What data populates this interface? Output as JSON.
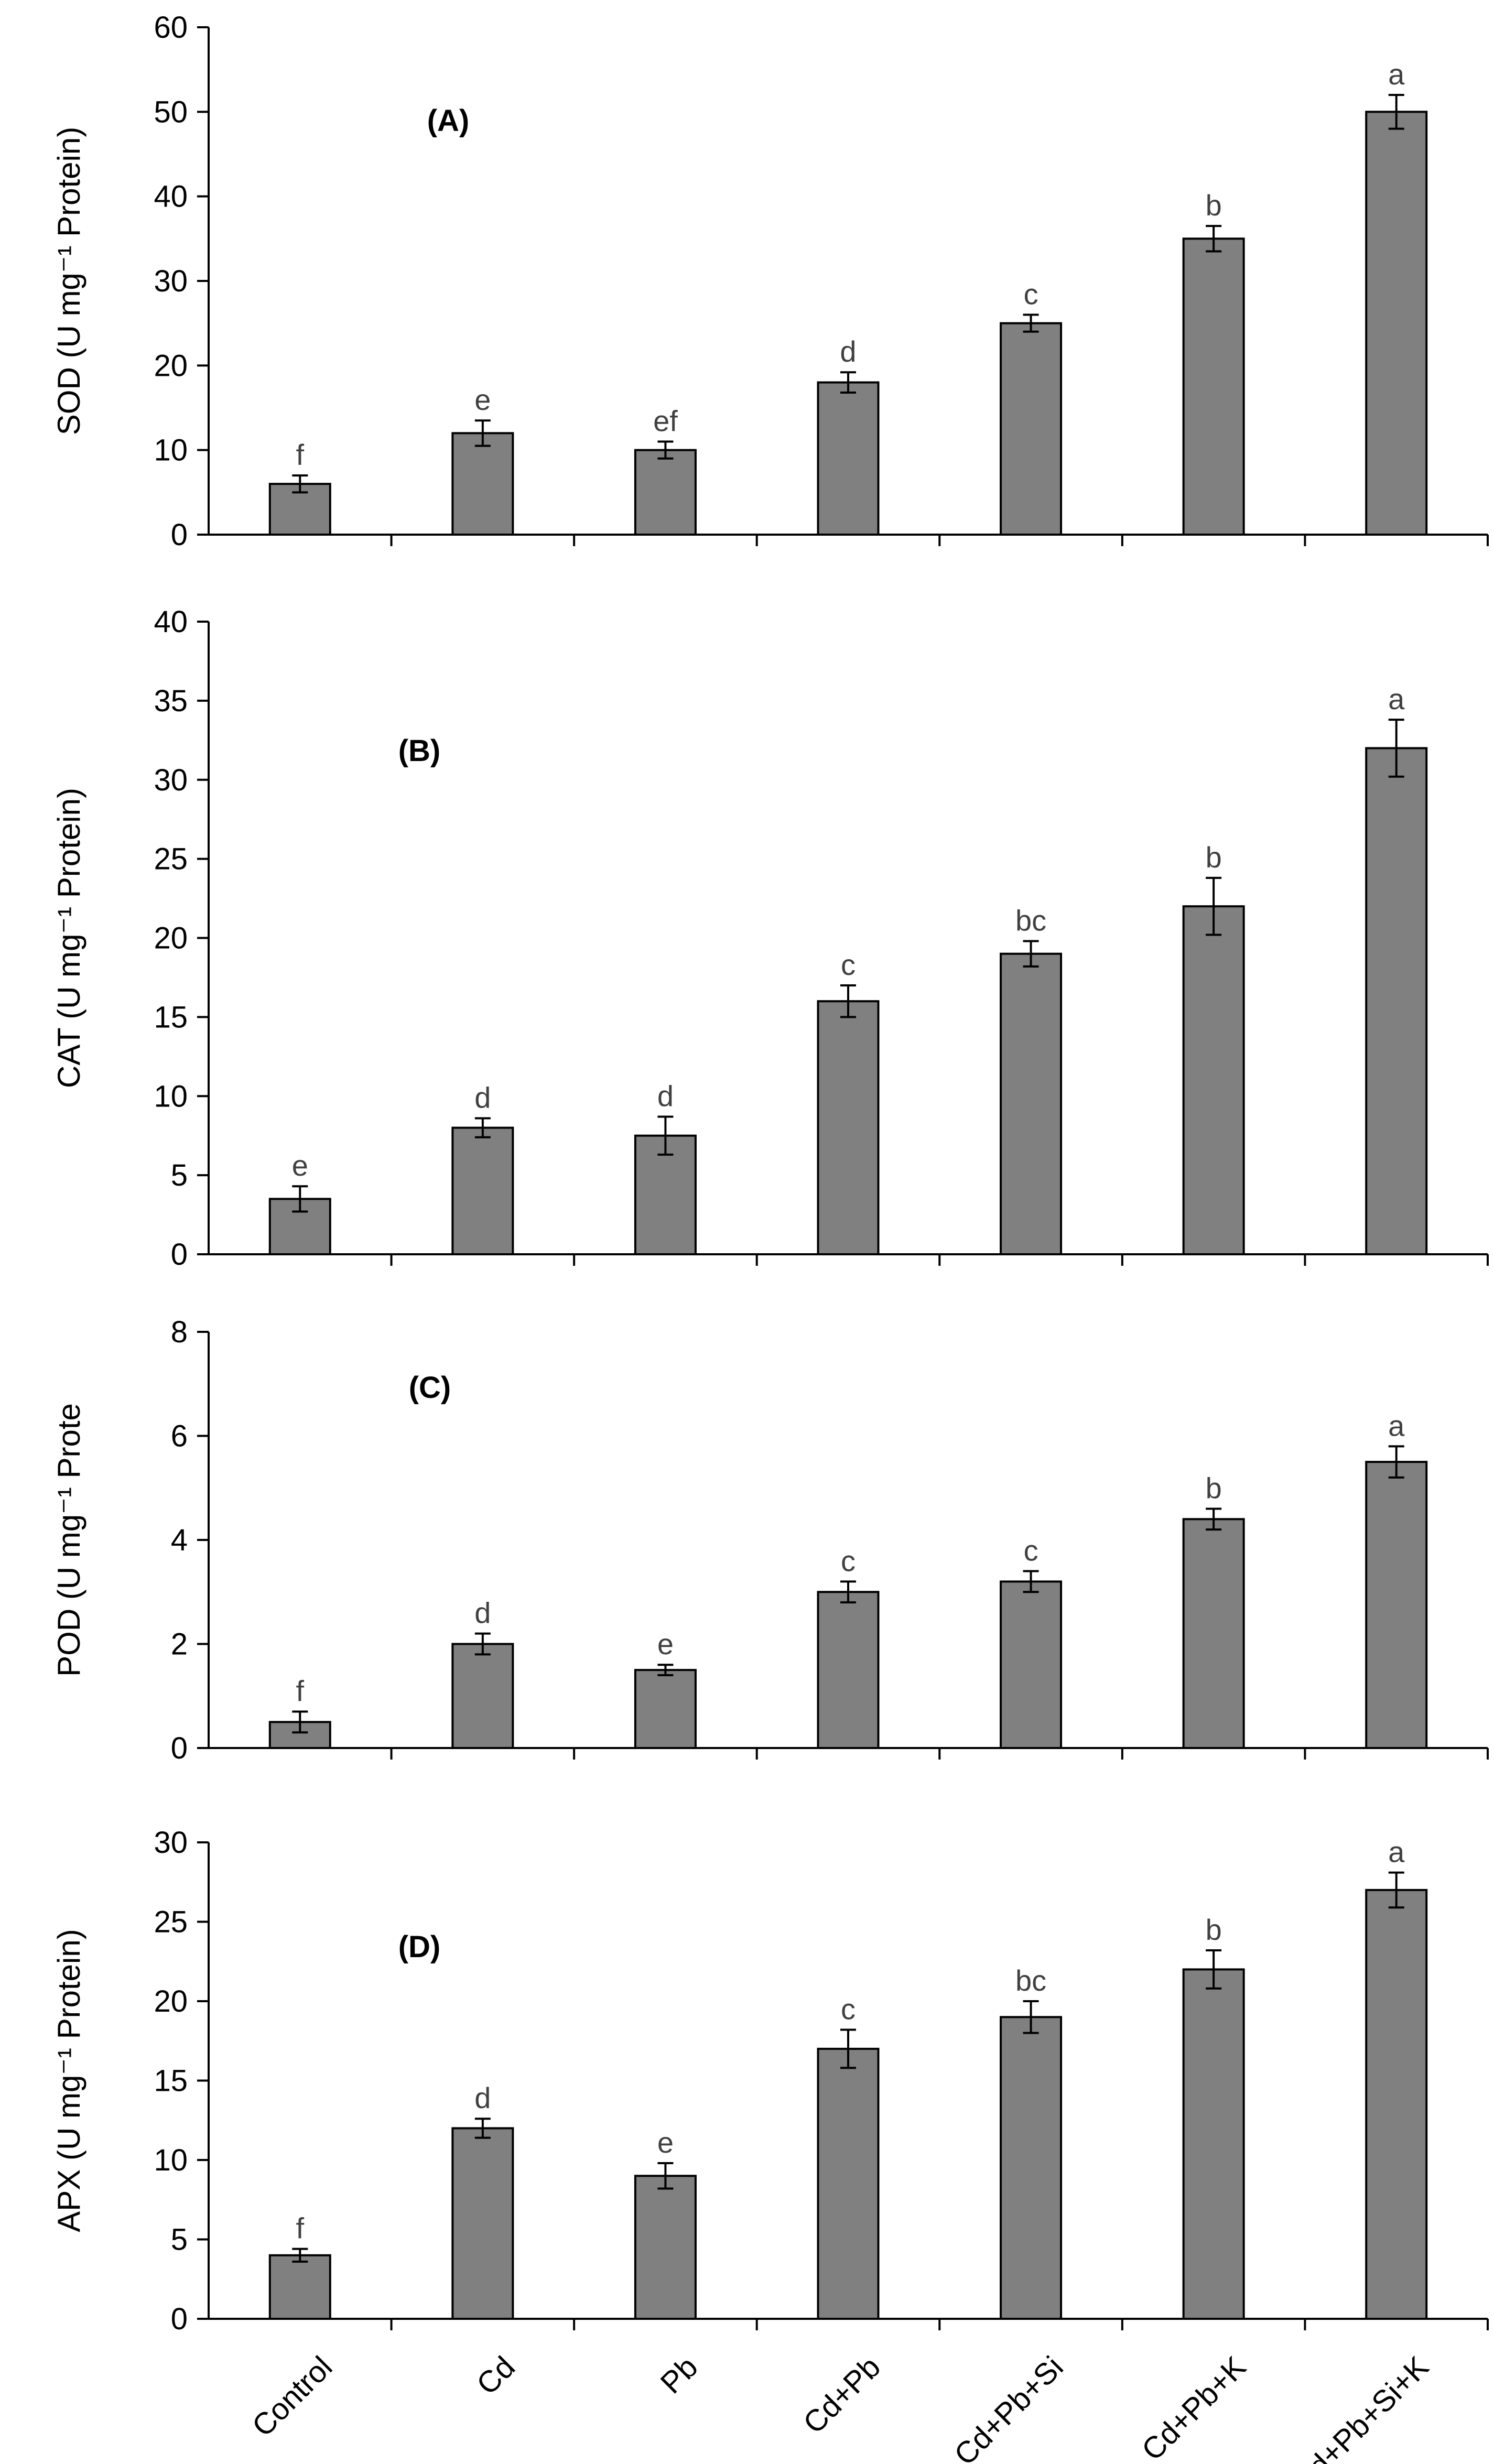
{
  "categories": [
    "Control",
    "Cd",
    "Pb",
    "Cd+Pb",
    "Cd+Pb+Si",
    "Cd+Pb+K",
    "Cd+Pb+Si+K"
  ],
  "colors": {
    "bar_fill": "#808080",
    "bar_stroke": "#000000",
    "letter_color": "#404040"
  },
  "chart_data": [
    {
      "type": "bar",
      "panel_label": "(A)",
      "ylabel": "SOD (U mg⁻¹ Protein)",
      "ylim": [
        0,
        60
      ],
      "yticks": [
        0,
        10,
        20,
        30,
        40,
        50,
        60
      ],
      "values": [
        6,
        12,
        10,
        18,
        25,
        35,
        50
      ],
      "errors": [
        1,
        1.5,
        1,
        1.2,
        1,
        1.5,
        2
      ],
      "letters": [
        "f",
        "e",
        "ef",
        "d",
        "c",
        "b",
        "a"
      ]
    },
    {
      "type": "bar",
      "panel_label": "(B)",
      "ylabel": "CAT (U mg⁻¹ Protein)",
      "ylim": [
        0,
        40
      ],
      "yticks": [
        0,
        5,
        10,
        15,
        20,
        25,
        30,
        35,
        40
      ],
      "values": [
        3.5,
        8,
        7.5,
        16,
        19,
        22,
        32
      ],
      "errors": [
        0.8,
        0.6,
        1.2,
        1,
        0.8,
        1.8,
        1.8
      ],
      "letters": [
        "e",
        "d",
        "d",
        "c",
        "bc",
        "b",
        "a"
      ]
    },
    {
      "type": "bar",
      "panel_label": "(C)",
      "ylabel": "POD (U mg⁻¹ Prote",
      "ylim": [
        0,
        8
      ],
      "yticks": [
        0,
        2,
        4,
        6,
        8
      ],
      "values": [
        0.5,
        2,
        1.5,
        3,
        3.2,
        4.4,
        5.5
      ],
      "errors": [
        0.2,
        0.2,
        0.1,
        0.2,
        0.2,
        0.2,
        0.3
      ],
      "letters": [
        "f",
        "d",
        "e",
        "c",
        "c",
        "b",
        "a"
      ]
    },
    {
      "type": "bar",
      "panel_label": "(D)",
      "ylabel": "APX (U mg⁻¹ Protein)",
      "ylim": [
        0,
        30
      ],
      "yticks": [
        0,
        5,
        10,
        15,
        20,
        25,
        30
      ],
      "values": [
        4,
        12,
        9,
        17,
        19,
        22,
        27
      ],
      "errors": [
        0.4,
        0.6,
        0.8,
        1.2,
        1,
        1.2,
        1.1
      ],
      "letters": [
        "f",
        "d",
        "e",
        "c",
        "bc",
        "b",
        "a"
      ]
    }
  ]
}
